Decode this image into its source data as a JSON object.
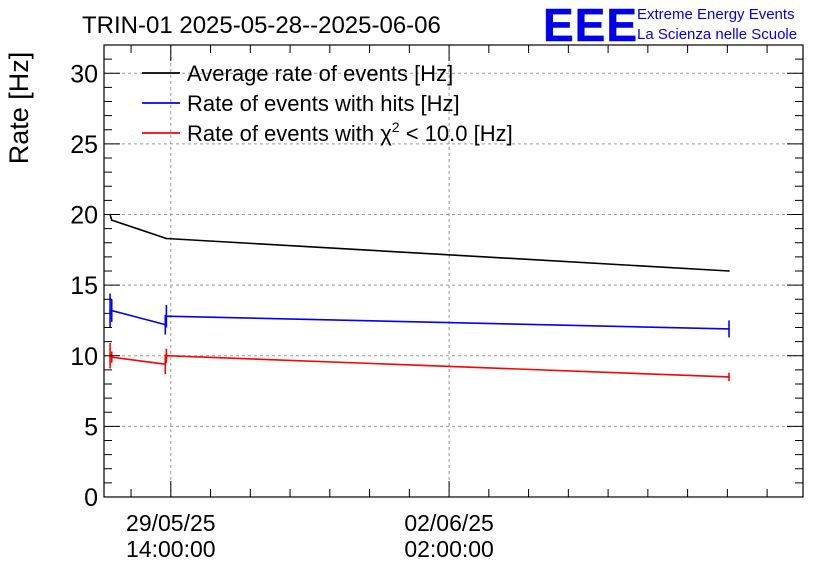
{
  "header": {
    "title": "TRIN-01 2025-05-28--2025-06-06",
    "logo_text": "EEE",
    "logo_line1": "Extreme Energy Events",
    "logo_line2": "La Scienza nelle Scuole"
  },
  "colors": {
    "black": "#000000",
    "blue": "#0000ff",
    "red": "#ff0000",
    "grid": "#9a9a9a",
    "logo": "#0000ee"
  },
  "chart_data": {
    "type": "line",
    "title": "TRIN-01 2025-05-28--2025-06-06",
    "xlabel": "",
    "ylabel": "Rate [Hz]",
    "ylim": [
      0,
      32
    ],
    "xlim": [
      "2025-05-28 17:50",
      "2025-06-06 12:50"
    ],
    "x_axis_type": "datetime",
    "yticks": [
      0,
      5,
      10,
      15,
      20,
      25,
      30
    ],
    "xticks": [
      {
        "x": "2025-05-29 14:00",
        "line1": "29/05/25",
        "line2": "14:00:00"
      },
      {
        "x": "2025-06-02 02:00",
        "line1": "02/06/25",
        "line2": "02:00:00"
      }
    ],
    "grid": true,
    "legend_position": "top-left",
    "series": [
      {
        "name": "Average rate of events [Hz]",
        "color": "#000000",
        "x": [
          "2025-05-28 19:40",
          "2025-05-28 20:10",
          "2025-05-29 12:40",
          "2025-06-05 14:30"
        ],
        "y": [
          20.0,
          19.6,
          18.3,
          16.0
        ],
        "err": [
          0,
          0,
          0,
          0
        ]
      },
      {
        "name": "Rate of events with hits [Hz]",
        "color": "#0000ff",
        "x": [
          "2025-05-28 19:40",
          "2025-05-28 20:10",
          "2025-05-29 12:20",
          "2025-05-29 12:40",
          "2025-06-05 14:30"
        ],
        "y": [
          13.2,
          13.2,
          12.2,
          12.8,
          11.9
        ],
        "err": [
          1.2,
          0.8,
          0.7,
          0.8,
          0.6
        ]
      },
      {
        "name": "Rate of events with χ² < 10.0 [Hz]",
        "color": "#ff0000",
        "x": [
          "2025-05-28 19:40",
          "2025-05-28 20:10",
          "2025-05-29 12:20",
          "2025-05-29 12:40",
          "2025-06-05 14:30"
        ],
        "y": [
          10.0,
          9.9,
          9.4,
          10.0,
          8.5
        ],
        "err": [
          0.9,
          0.4,
          0.7,
          0.5,
          0.3
        ]
      }
    ],
    "legend": [
      {
        "color": "#000000",
        "pre": "Average rate of events [Hz]",
        "chi": "",
        "post": ""
      },
      {
        "color": "#0000ff",
        "pre": "Rate of events with hits [Hz]",
        "chi": "",
        "post": ""
      },
      {
        "color": "#ff0000",
        "pre": "Rate of events with ",
        "chi": "χ",
        "post": " < 10.0 [Hz]"
      }
    ]
  }
}
